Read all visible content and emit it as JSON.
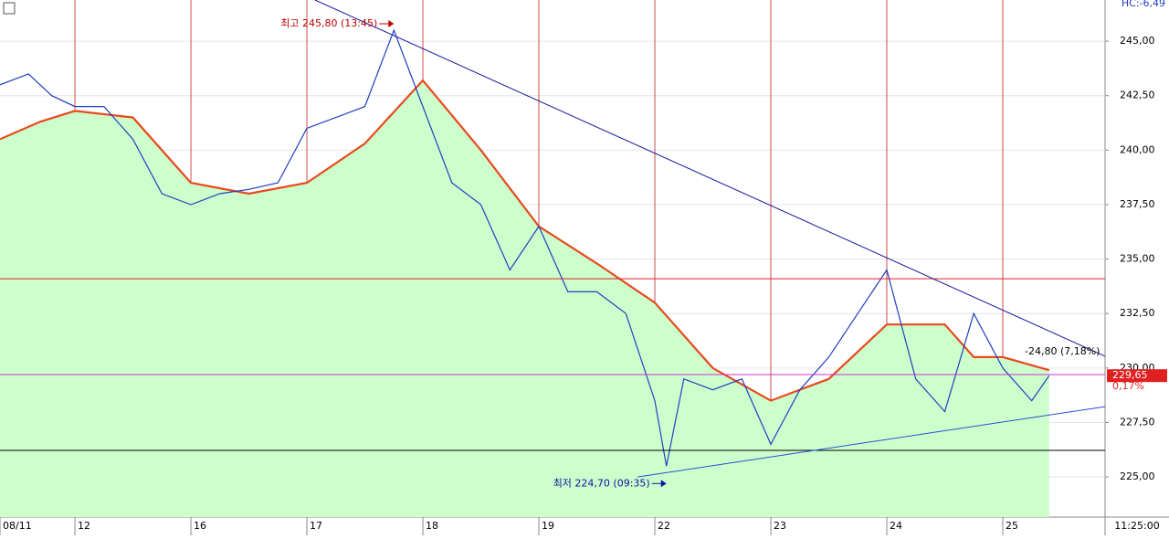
{
  "chart_data": {
    "type": "line",
    "xlim": [
      -0.646,
      8.882
    ],
    "ylim": [
      223.16,
      246.89
    ],
    "xticks": [
      {
        "value": -0.646,
        "label": "08/11"
      },
      {
        "value": 0,
        "label": "12"
      },
      {
        "value": 1,
        "label": "16"
      },
      {
        "value": 2,
        "label": "17"
      },
      {
        "value": 3,
        "label": "18"
      },
      {
        "value": 4,
        "label": "19"
      },
      {
        "value": 5,
        "label": "22"
      },
      {
        "value": 6,
        "label": "23"
      },
      {
        "value": 7,
        "label": "24"
      },
      {
        "value": 8,
        "label": "25"
      }
    ],
    "yticks": [
      {
        "value": 225,
        "label": "225,00"
      },
      {
        "value": 227.5,
        "label": "227,50"
      },
      {
        "value": 230,
        "label": "230,00"
      },
      {
        "value": 232.5,
        "label": "232,50"
      },
      {
        "value": 235,
        "label": "235,00"
      },
      {
        "value": 237.5,
        "label": "237,50"
      },
      {
        "value": 240,
        "label": "240,00"
      },
      {
        "value": 242.5,
        "label": "242,50"
      },
      {
        "value": 245,
        "label": "245,00"
      }
    ],
    "series": [
      {
        "color": "#1f3fbf",
        "x": [
          -0.646,
          -0.4,
          -0.2,
          0,
          0.25,
          0.5,
          0.75,
          1.0,
          1.25,
          1.5,
          1.75,
          2.0,
          2.25,
          2.5,
          2.75,
          3.0,
          3.25,
          3.5,
          3.75,
          4.0,
          4.25,
          4.5,
          4.75,
          5.0,
          5.1,
          5.25,
          5.5,
          5.75,
          6.0,
          6.25,
          6.5,
          6.75,
          7.0,
          7.25,
          7.5,
          7.75,
          8.0,
          8.25,
          8.4
        ],
        "values": [
          243,
          243.5,
          242.5,
          242,
          242,
          240.5,
          238,
          237.5,
          238,
          238.2,
          238.5,
          241,
          241.5,
          242,
          245.5,
          242,
          238.5,
          237.5,
          234.5,
          236.5,
          233.5,
          233.5,
          232.5,
          228.5,
          225.5,
          229.5,
          229,
          229.5,
          226.5,
          229,
          230.5,
          232.5,
          234.5,
          229.5,
          228,
          232.5,
          230,
          228.5,
          229.65
        ]
      },
      {
        "color": "#e8491d",
        "fill": "#ccffcc",
        "x": [
          -0.646,
          -0.3,
          0,
          0.5,
          1.0,
          1.5,
          2.0,
          2.5,
          3.0,
          3.5,
          4.0,
          4.5,
          5.0,
          5.5,
          6.0,
          6.5,
          7.0,
          7.5,
          7.75,
          8.0,
          8.4
        ],
        "values": [
          240.5,
          241.3,
          241.8,
          241.5,
          238.5,
          238,
          238.5,
          240.3,
          243.2,
          240,
          236.5,
          234.8,
          233,
          230,
          228.5,
          229.5,
          232,
          232,
          230.5,
          230.5,
          229.9
        ]
      }
    ],
    "trend_lines": [
      {
        "color": "#1a1aa0",
        "x": [
          2.07,
          8.882
        ],
        "y": [
          246.89,
          230.54
        ]
      },
      {
        "color": "#2a4fd0",
        "x": [
          4.85,
          8.882
        ],
        "y": [
          225.0,
          228.23
        ]
      }
    ],
    "hlines": [
      {
        "value": 234.1,
        "color": "#e02020"
      },
      {
        "value": 229.7,
        "color": "#d030d0"
      },
      {
        "value": 226.22,
        "color": "#000000"
      }
    ],
    "annotations": [
      {
        "text": "최고 245,80 (13:45)",
        "x": 2.75,
        "y": 245.8,
        "color": "#c00000"
      },
      {
        "text": "최저 224,70 (09:35)",
        "x": 5.1,
        "y": 224.7,
        "color": "#1010a0"
      },
      {
        "text": "-24,80 (7,18%)",
        "x": 8.87,
        "y": 230.7,
        "color": "#000000"
      }
    ],
    "last_label": "229,65",
    "change_label": "0,17%",
    "corner_label": "HC:-6,49",
    "time_label": "11:25:00"
  }
}
